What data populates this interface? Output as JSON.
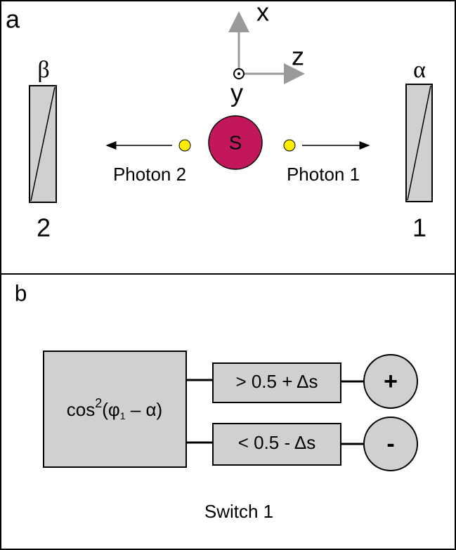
{
  "panel_a": {
    "label": "a",
    "axes": {
      "x": "x",
      "z": "z",
      "y": "y"
    },
    "polarizer_left": {
      "angle": "β",
      "number": "2"
    },
    "polarizer_right": {
      "angle": "α",
      "number": "1"
    },
    "source": "S",
    "photon_left": "Photon 2",
    "photon_right": "Photon 1"
  },
  "panel_b": {
    "label": "b",
    "formula": {
      "base": "cos",
      "exponent": "2",
      "open": "(φ",
      "subscript": "1",
      "rest": " – α)"
    },
    "upper_condition": "> 0.5 + Δs",
    "lower_condition": "< 0.5 - Δs",
    "upper_output": "+",
    "lower_output": "-",
    "caption": "Switch 1"
  }
}
